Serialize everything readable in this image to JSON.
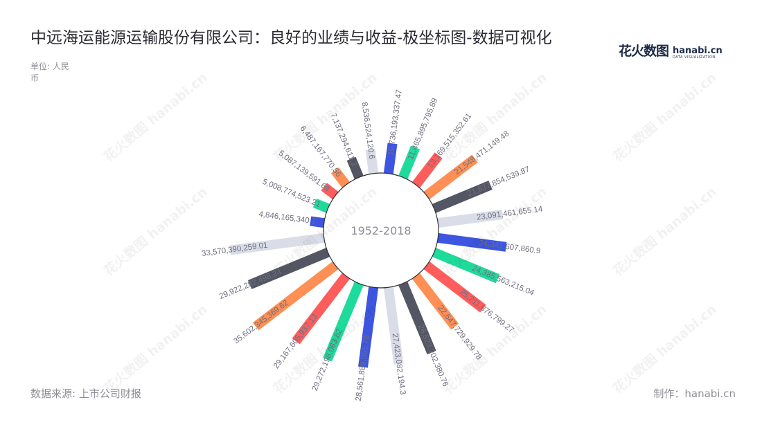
{
  "header": {
    "title": "中远海运能源运输股份有限公司：良好的业绩与收益-极坐标图-数据可视化",
    "unit": "单位: 人民币"
  },
  "logo": {
    "cn": "花火数图",
    "en": "hanabi.cn",
    "sub": "DATA VISUALIZATION"
  },
  "footer": {
    "source": "数据来源: 上市公司财报",
    "maker": "制作：hanabi.cn"
  },
  "chart_data": {
    "type": "bar",
    "coordinate": "polar",
    "center_label": "1952-2018",
    "values": [
      10736193337.47,
      11465895795.89,
      13169515352.61,
      21548471149.48,
      21637854539.87,
      23091461655.14,
      24341607860.9,
      24385563215.04,
      25211876799.27,
      22647729929.78,
      26523202380.76,
      27423082194.3,
      28561889065.78,
      29272198063.82,
      29167605937.13,
      35602345369.62,
      29922282498.24,
      33570390259.01,
      4846165340.1,
      5008774523.21,
      5087139591.69,
      6487167770.56,
      7137294611.2,
      8536524120.6
    ],
    "labels": [
      "10,736,193,337.47",
      "11,465,895,795.89",
      "13,169,515,352.61",
      "21,548,471,149.48",
      "21,637,854,539.87",
      "23,091,461,655.14",
      "24,341,607,860.9",
      "24,385,563,215.04",
      "25,211,876,799.27",
      "22,647,729,929.78",
      "26,523,202,380.76",
      "27,423,082,194.3",
      "28,561,889,065.78",
      "29,272,198,063.82",
      "29,167,605,937.13",
      "35,602,345,369.62",
      "29,922,282,498.24",
      "33,570,390,259.01",
      "4,846,165,340.1",
      "5,008,774,523.21",
      "5,087,139,591.69",
      "6,487,167,770.56",
      "7,137,294,611.2",
      "8,536,524,120.6"
    ],
    "colors": [
      "#3d55e0",
      "#1fdb9b",
      "#ff5c5c",
      "#ff8f54",
      "#545663",
      "#dadde8"
    ]
  }
}
